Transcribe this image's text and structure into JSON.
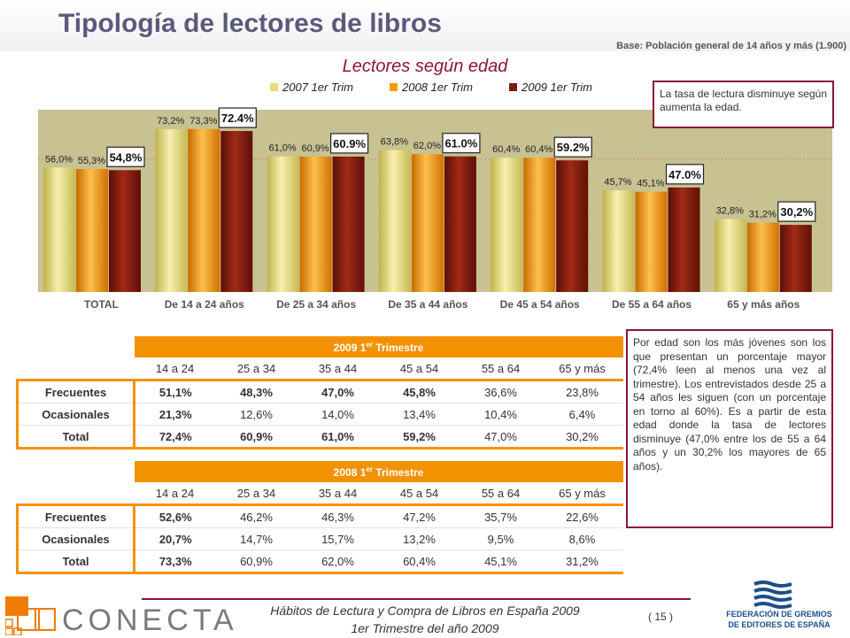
{
  "header": {
    "title": "Tipología de lectores de libros",
    "base_note": "Base: Población general de 14 años y más (1.900)"
  },
  "chart_data": {
    "type": "bar",
    "title": "Lectores según edad",
    "categories": [
      "TOTAL",
      "De 14 a 24 años",
      "De 25 a 34 años",
      "De 35 a 44 años",
      "De 45 a 54 años",
      "De 55 a 64 años",
      "65 y más años"
    ],
    "series": [
      {
        "name": "2007 1er Trim",
        "values": [
          56.0,
          73.2,
          61.0,
          63.8,
          60.4,
          45.7,
          32.8
        ],
        "labels": [
          "56,0%",
          "73,2%",
          "61,0%",
          "63,8%",
          "60,4%",
          "45,7%",
          "32,8%"
        ]
      },
      {
        "name": "2008 1er Trim",
        "values": [
          55.3,
          73.3,
          60.9,
          62.0,
          60.4,
          45.1,
          31.2
        ],
        "labels": [
          "55,3%",
          "73,3%",
          "60,9%",
          "62,0%",
          "60,4%",
          "45,1%",
          "31,2%"
        ]
      },
      {
        "name": "2009 1er Trim",
        "values": [
          54.8,
          72.4,
          60.9,
          61.0,
          59.2,
          47.0,
          30.2
        ],
        "labels": [
          "54,8%",
          "72.4%",
          "60.9%",
          "61.0%",
          "59.2%",
          "47.0%",
          "30,2%"
        ]
      }
    ],
    "colors": [
      "#e6dc7a",
      "#f59a0c",
      "#7a1a10"
    ],
    "ylim": [
      0,
      100
    ],
    "legend_position": "top",
    "grid": false
  },
  "notes": {
    "chart_note": "La tasa de lectura disminuye según aumenta la edad.",
    "table_note": "Por edad son los más jóvenes son los que presentan un porcentaje mayor (72,4% leen al menos una vez al trimestre). Los entrevistados desde 25 a 54 años les siguen (con un porcentaje en torno al 60%). Es a partir de esta edad donde la tasa de lectores disminuye (47,0% entre los de 55 a 64 años y un 30,2% los mayores de 65 años)."
  },
  "tables": [
    {
      "title": "2009 1",
      "title_sup": "er",
      "title_end": "Trimestre",
      "columns": [
        "14 a 24",
        "25 a 34",
        "35 a 44",
        "45 a 54",
        "55 a 64",
        "65 y más"
      ],
      "rows": [
        {
          "label": "Frecuentes",
          "values": [
            "51,1%",
            "48,3%",
            "47,0%",
            "45,8%",
            "36,6%",
            "23,8%"
          ]
        },
        {
          "label": "Ocasionales",
          "values": [
            "21,3%",
            "12,6%",
            "14,0%",
            "13,4%",
            "10,4%",
            "6,4%"
          ]
        },
        {
          "label": "Total",
          "values": [
            "72,4%",
            "60,9%",
            "61,0%",
            "59,2%",
            "47,0%",
            "30,2%"
          ]
        }
      ]
    },
    {
      "title": "2008 1",
      "title_sup": "er",
      "title_end": "Trimestre",
      "columns": [
        "14 a 24",
        "25 a 34",
        "35 a 44",
        "45 a 54",
        "55 a 64",
        "65 y más"
      ],
      "rows": [
        {
          "label": "Frecuentes",
          "values": [
            "52,6%",
            "46,2%",
            "46,3%",
            "47,2%",
            "35,7%",
            "22,6%"
          ]
        },
        {
          "label": "Ocasionales",
          "values": [
            "20,7%",
            "14,7%",
            "15,7%",
            "13,2%",
            "9,5%",
            "8,6%"
          ]
        },
        {
          "label": "Total",
          "values": [
            "73,3%",
            "60,9%",
            "62,0%",
            "60,4%",
            "45,1%",
            "31,2%"
          ]
        }
      ]
    }
  ],
  "footer": {
    "line1": "Hábitos de Lectura y Compra de Libros en España 2009",
    "line2": "1er Trimestre del año 2009",
    "page": "( 15 )",
    "logo_left": "CONECTA",
    "logo_right_line1": "FEDERACIÓN DE GREMIOS",
    "logo_right_line2": "DE EDITORES DE ESPAÑA"
  }
}
